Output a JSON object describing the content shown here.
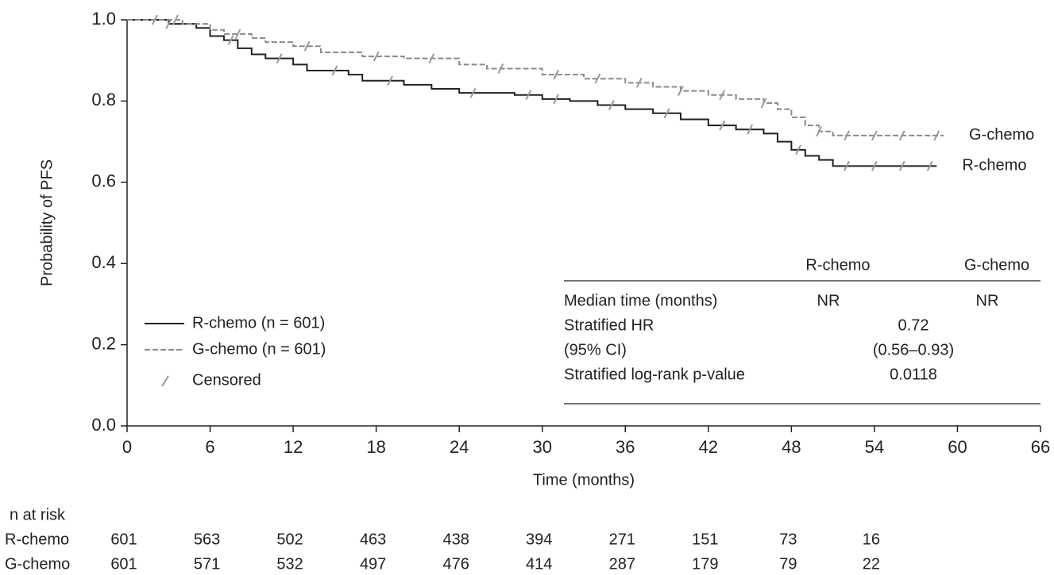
{
  "chart_data": {
    "type": "line",
    "drawstyle": "steps-post",
    "xlabel": "Time (months)",
    "ylabel": "Probability of PFS",
    "xlim": [
      0,
      66
    ],
    "xticks": [
      0,
      6,
      12,
      18,
      24,
      30,
      36,
      42,
      48,
      54,
      60,
      66
    ],
    "ylim": [
      0,
      1
    ],
    "yticks": [
      {
        "value": 0,
        "label": "0.0"
      },
      0.2,
      0.4,
      0.6,
      0.8,
      {
        "value": 1,
        "label": "1.0"
      }
    ],
    "series": [
      {
        "name": "R-chemo",
        "legend_label": "R-chemo (n = 601)",
        "color": "#222222",
        "dash": "solid",
        "x": [
          0,
          3,
          5,
          6,
          7,
          8,
          9,
          10,
          12,
          13,
          16,
          17,
          20,
          22,
          24,
          28,
          30,
          32,
          34,
          36,
          38,
          40,
          42,
          44,
          46,
          47,
          48,
          49,
          50,
          51,
          58.5
        ],
        "values": [
          1.0,
          0.99,
          0.98,
          0.96,
          0.95,
          0.93,
          0.915,
          0.905,
          0.89,
          0.875,
          0.865,
          0.85,
          0.84,
          0.83,
          0.82,
          0.815,
          0.805,
          0.8,
          0.79,
          0.78,
          0.77,
          0.755,
          0.74,
          0.73,
          0.72,
          0.7,
          0.68,
          0.665,
          0.655,
          0.64,
          0.64
        ],
        "censored_x": [
          3,
          7.5,
          11,
          15,
          19,
          25,
          29,
          31,
          35,
          39,
          43,
          45,
          48.5,
          52,
          54,
          56,
          58
        ],
        "censored_y": [
          0.99,
          0.95,
          0.905,
          0.875,
          0.85,
          0.82,
          0.815,
          0.805,
          0.79,
          0.77,
          0.74,
          0.73,
          0.68,
          0.64,
          0.64,
          0.64,
          0.64
        ]
      },
      {
        "name": "G-chemo",
        "legend_label": "G-chemo (n = 601)",
        "color": "#8a8a8a",
        "dash": "dashed",
        "x": [
          0,
          4,
          6,
          7,
          9,
          10,
          12,
          14,
          17,
          20,
          24,
          26,
          30,
          33,
          36,
          38,
          40,
          42,
          44,
          46,
          47,
          48,
          49,
          50,
          51,
          59
        ],
        "values": [
          1.0,
          0.99,
          0.975,
          0.965,
          0.955,
          0.945,
          0.935,
          0.92,
          0.91,
          0.905,
          0.89,
          0.88,
          0.865,
          0.855,
          0.845,
          0.835,
          0.825,
          0.815,
          0.805,
          0.795,
          0.78,
          0.76,
          0.74,
          0.725,
          0.715,
          0.715
        ],
        "censored_x": [
          2,
          3.5,
          8,
          13,
          18,
          22,
          27,
          31,
          34,
          37,
          40,
          43,
          46,
          50,
          52,
          54,
          56,
          58.5
        ],
        "censored_y": [
          1.0,
          1.0,
          0.965,
          0.935,
          0.91,
          0.905,
          0.88,
          0.865,
          0.855,
          0.845,
          0.825,
          0.815,
          0.795,
          0.725,
          0.715,
          0.715,
          0.715,
          0.715
        ]
      }
    ],
    "legend": {
      "position": "lower left",
      "censored_label": "Censored"
    },
    "stats_table": {
      "header": [
        "R-chemo",
        "G-chemo"
      ],
      "rows": [
        [
          "Median time (months)",
          "NR",
          "NR"
        ],
        [
          "Stratified HR",
          "0.72"
        ],
        [
          "(95% CI)",
          "(0.56–0.93)"
        ],
        [
          "Stratified log-rank p-value",
          "0.0118"
        ]
      ]
    },
    "risk_table": {
      "title": "n at risk",
      "rows": [
        {
          "name": "R-chemo",
          "counts": [
            601,
            563,
            502,
            463,
            438,
            394,
            271,
            151,
            73,
            16
          ]
        },
        {
          "name": "G-chemo",
          "counts": [
            601,
            571,
            532,
            497,
            476,
            414,
            287,
            179,
            79,
            22
          ]
        }
      ]
    }
  }
}
